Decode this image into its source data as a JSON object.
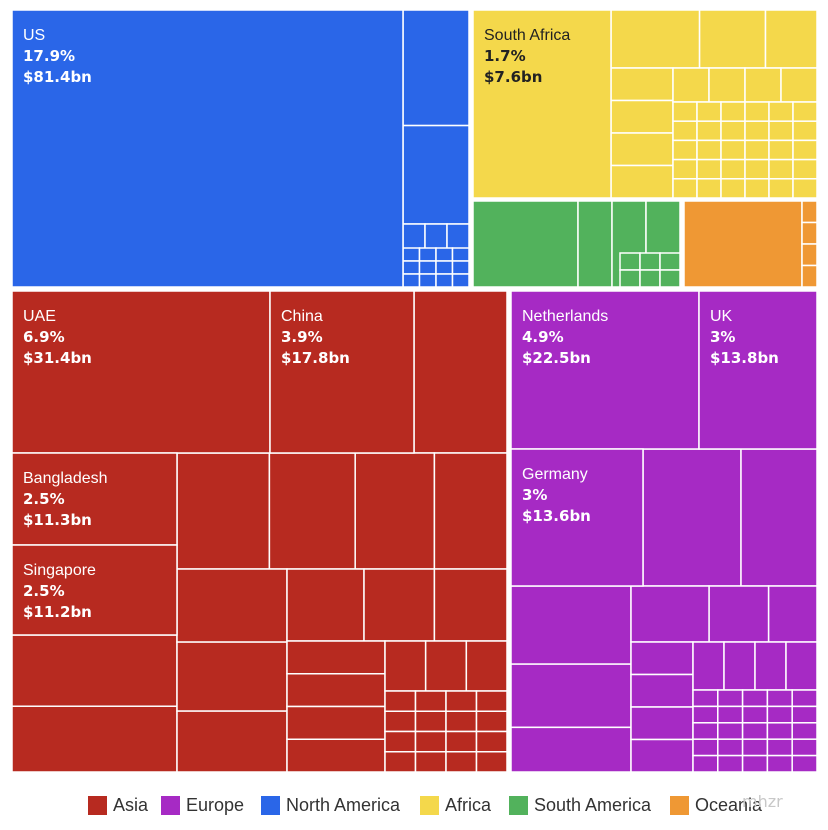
{
  "chart_data": {
    "type": "treemap",
    "legend_position": "bottom",
    "colors": {
      "Asia": "#b72a20",
      "Europe": "#a62ac4",
      "North America": "#2a66e8",
      "Africa": "#f4d84b",
      "South America": "#52b25c",
      "Oceania": "#ef9834"
    },
    "legend": [
      "Asia",
      "Europe",
      "North America",
      "Africa",
      "South America",
      "Oceania"
    ],
    "labeled_items": [
      {
        "name": "US",
        "region": "North America",
        "percent": "17.9%",
        "value": "$81.4bn",
        "share": 17.9,
        "value_bn": 81.4
      },
      {
        "name": "South Africa",
        "region": "Africa",
        "percent": "1.7%",
        "value": "$7.6bn",
        "share": 1.7,
        "value_bn": 7.6
      },
      {
        "name": "UAE",
        "region": "Asia",
        "percent": "6.9%",
        "value": "$31.4bn",
        "share": 6.9,
        "value_bn": 31.4
      },
      {
        "name": "China",
        "region": "Asia",
        "percent": "3.9%",
        "value": "$17.8bn",
        "share": 3.9,
        "value_bn": 17.8
      },
      {
        "name": "Bangladesh",
        "region": "Asia",
        "percent": "2.5%",
        "value": "$11.3bn",
        "share": 2.5,
        "value_bn": 11.3
      },
      {
        "name": "Singapore",
        "region": "Asia",
        "percent": "2.5%",
        "value": "$11.2bn",
        "share": 2.5,
        "value_bn": 11.2
      },
      {
        "name": "Netherlands",
        "region": "Europe",
        "percent": "4.9%",
        "value": "$22.5bn",
        "share": 4.9,
        "value_bn": 22.5
      },
      {
        "name": "UK",
        "region": "Europe",
        "percent": "3%",
        "value": "$13.8bn",
        "share": 3.0,
        "value_bn": 13.8
      },
      {
        "name": "Germany",
        "region": "Europe",
        "percent": "3%",
        "value": "$13.6bn",
        "share": 3.0,
        "value_bn": 13.6
      }
    ]
  },
  "watermark": "mhzr"
}
